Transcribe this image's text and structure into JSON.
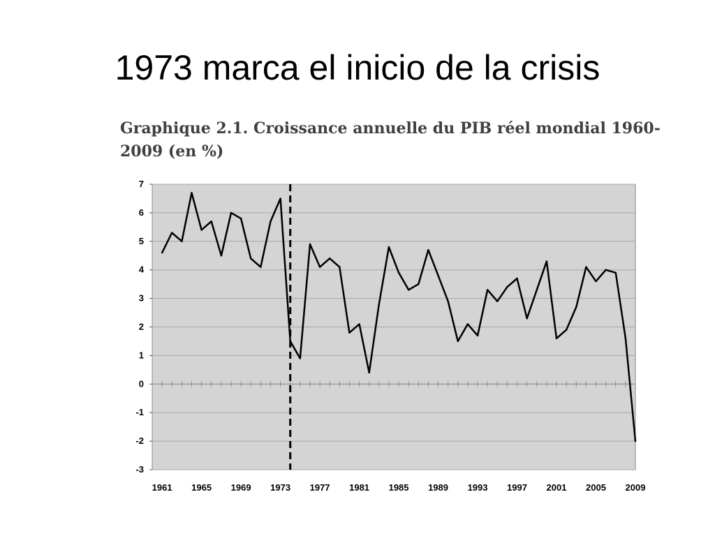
{
  "slide": {
    "title": "1973 marca el inicio de la crisis"
  },
  "chart_data": {
    "type": "line",
    "title": "Graphique 2.1. Croissance annuelle du PIB réel mondial 1960-2009 (en %)",
    "xlabel": "",
    "ylabel": "",
    "ylim": [
      -3,
      7
    ],
    "yticks": [
      "7",
      "6",
      "5",
      "4",
      "3",
      "2",
      "1",
      "0",
      "-1",
      "-2",
      "-3"
    ],
    "xticks": [
      "1961",
      "1965",
      "1969",
      "1973",
      "1977",
      "1981",
      "1985",
      "1989",
      "1993",
      "1997",
      "2001",
      "2005",
      "2009"
    ],
    "grid": true,
    "background": "#d4d4d4",
    "line_color": "#000000",
    "marker_line_x": 1974,
    "marker_line_style": "dashed",
    "series": [
      {
        "x": [
          1961,
          1962,
          1963,
          1964,
          1965,
          1966,
          1967,
          1968,
          1969,
          1970,
          1971,
          1972,
          1973,
          1974,
          1975,
          1976,
          1977,
          1978,
          1979,
          1980,
          1981,
          1982,
          1983,
          1984,
          1985,
          1986,
          1987,
          1988,
          1989,
          1990,
          1991,
          1992,
          1993,
          1994,
          1995,
          1996,
          1997,
          1998,
          1999,
          2000,
          2001,
          2002,
          2003,
          2004,
          2005,
          2006,
          2007,
          2008,
          2009
        ],
        "values": [
          4.6,
          5.3,
          5.0,
          6.7,
          5.4,
          5.7,
          4.5,
          6.0,
          5.8,
          4.4,
          4.1,
          5.7,
          6.5,
          1.5,
          0.9,
          4.9,
          4.1,
          4.4,
          4.1,
          1.8,
          2.1,
          0.4,
          2.8,
          4.8,
          3.9,
          3.3,
          3.5,
          4.7,
          3.8,
          2.9,
          1.5,
          2.1,
          1.7,
          3.3,
          2.9,
          3.4,
          3.7,
          2.3,
          3.3,
          4.3,
          1.6,
          1.9,
          2.7,
          4.1,
          3.6,
          4.0,
          3.9,
          1.6,
          -2.0
        ]
      }
    ]
  }
}
